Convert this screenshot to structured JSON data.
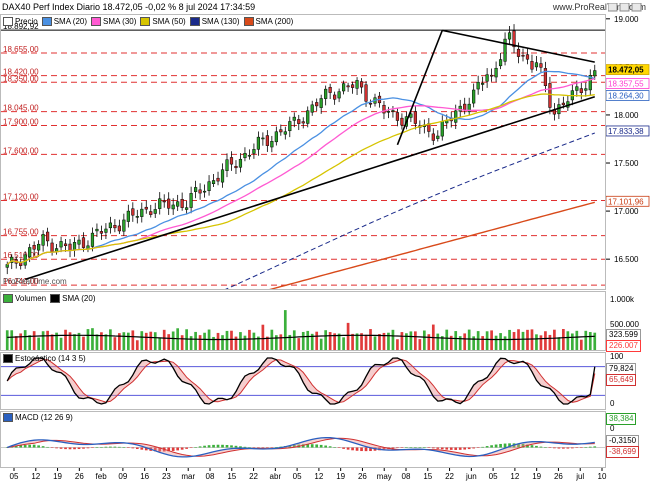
{
  "header": {
    "title": "DAX40 Perf Index Diario 18.472,05 -0,02 % 8 jul 2024 17:34:59",
    "site": "www.ProRealTime.com",
    "watermark": "ProRealTime.com"
  },
  "price_panel": {
    "legend": [
      "Precio",
      "SMA (20)",
      "SMA (30)",
      "SMA (50)",
      "SMA (130)",
      "SMA (200)"
    ],
    "legend_colors": [
      "#ffffff",
      "#4a90e2",
      "#ff5ad2",
      "#d6c400",
      "#1a2a8a",
      "#d84a1a"
    ],
    "left_levels": [
      "18.892,92",
      "18.655,00",
      "18.420,00",
      "18.350,00",
      "18.045,00",
      "17.900,00",
      "17.600,00",
      "17.120,00",
      "16.755,00",
      "16.510,00",
      "16.240,00"
    ],
    "right_ticks": [
      "19.000",
      "18.500",
      "18.000",
      "17.500",
      "17.000",
      "16.500"
    ],
    "right_labels": [
      {
        "text": "18.472,05",
        "bg": "#ffd700",
        "color": "#000"
      },
      {
        "text": "18.357,55",
        "bg": "#ffffff",
        "color": "#ff3ad0"
      },
      {
        "text": "18.264,30",
        "bg": "#ffffff",
        "color": "#2a60c0"
      },
      {
        "text": "17.833,38",
        "bg": "#ffffff",
        "color": "#1a2a8a"
      },
      {
        "text": "17.101,96",
        "bg": "#ffffff",
        "color": "#c83a10"
      }
    ]
  },
  "volume_panel": {
    "legend": [
      "Volumen",
      "SMA (20)"
    ],
    "ticks": [
      "1.000k",
      "500.000"
    ],
    "labels": [
      {
        "text": "323.599",
        "color": "#000"
      },
      {
        "text": "226.007",
        "color": "#ff3a3a"
      }
    ]
  },
  "stoch_panel": {
    "legend": [
      "Estocástico (14 3 5)"
    ],
    "ticks": [
      "100",
      "0"
    ],
    "labels": [
      {
        "text": "79,824",
        "color": "#000"
      },
      {
        "text": "65,649",
        "color": "#d03030"
      }
    ]
  },
  "macd_panel": {
    "legend": [
      "MACD (12 26 9)"
    ],
    "ticks": [
      "0"
    ],
    "labels": [
      {
        "text": "38,384",
        "color": "#2aa02a"
      },
      {
        "text": "-0,3150",
        "color": "#000"
      },
      {
        "text": "-38,699",
        "color": "#d03030"
      }
    ]
  },
  "x_axis": {
    "labels": [
      "05",
      "12",
      "19",
      "26",
      "feb",
      "09",
      "16",
      "23",
      "mar",
      "08",
      "15",
      "22",
      "abr",
      "05",
      "12",
      "19",
      "26",
      "may",
      "08",
      "15",
      "22",
      "jun",
      "05",
      "12",
      "19",
      "26",
      "jul",
      "10"
    ]
  },
  "chart_data": {
    "type": "candlestick",
    "title": "DAX40 Perf Index Diario",
    "last_price": 18472.05,
    "ylim": [
      16200,
      19050
    ],
    "y_ticks": [
      16500,
      17000,
      17500,
      18000,
      18500,
      19000
    ],
    "indicator_last_values": {
      "SMA (20)": 18264.3,
      "SMA (30)": 18357.55,
      "SMA (130)": 17833.38,
      "SMA (200)": 17101.96
    },
    "volume_last": [
      323599,
      226007
    ],
    "stochastic_last": [
      79.824,
      65.649
    ],
    "macd_last": [
      38.384,
      -0.315,
      -38.699
    ]
  }
}
